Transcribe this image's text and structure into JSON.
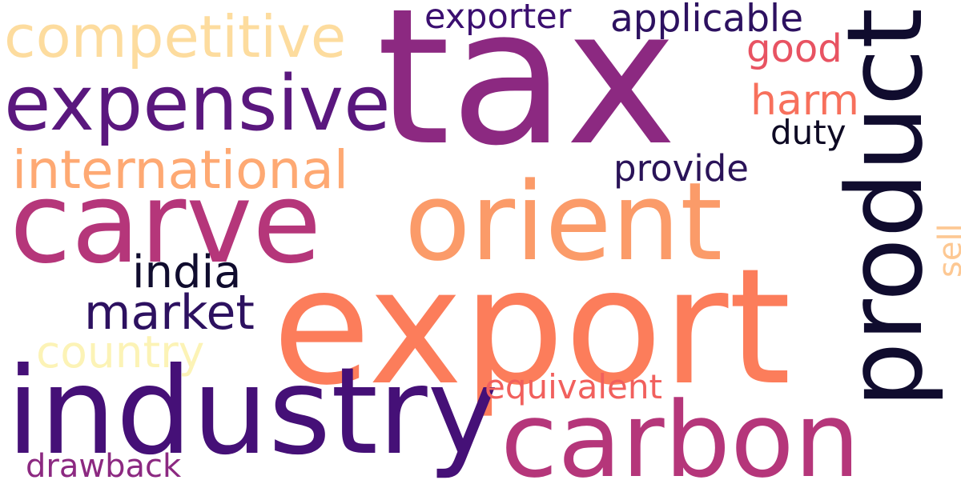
{
  "words": [
    {
      "id": "tax",
      "text": "tax",
      "color": "#8c2981"
    },
    {
      "id": "export",
      "text": "export",
      "color": "#fc7d5b"
    },
    {
      "id": "industry",
      "text": "industry",
      "color": "#451077"
    },
    {
      "id": "carve",
      "text": "carve",
      "color": "#b5367a"
    },
    {
      "id": "orient",
      "text": "orient",
      "color": "#fb9b69"
    },
    {
      "id": "product",
      "text": "product",
      "color": "#100c2e"
    },
    {
      "id": "carbon",
      "text": "carbon",
      "color": "#b5367a"
    },
    {
      "id": "expensive",
      "text": "expensive",
      "color": "#5a177e"
    },
    {
      "id": "competitive",
      "text": "competitive",
      "color": "#fddc9e"
    },
    {
      "id": "international",
      "text": "international",
      "color": "#fea973"
    },
    {
      "id": "market",
      "text": "market",
      "color": "#2d1160"
    },
    {
      "id": "india",
      "text": "india",
      "color": "#100c2e"
    },
    {
      "id": "country",
      "text": "country",
      "color": "#fcf3b6"
    },
    {
      "id": "exporter",
      "text": "exporter",
      "color": "#3b0f70"
    },
    {
      "id": "applicable",
      "text": "applicable",
      "color": "#2d1160"
    },
    {
      "id": "good",
      "text": "good",
      "color": "#e85362"
    },
    {
      "id": "harm",
      "text": "harm",
      "color": "#f7705c"
    },
    {
      "id": "duty",
      "text": "duty",
      "color": "#0e0a24"
    },
    {
      "id": "provide",
      "text": "provide",
      "color": "#2a1358"
    },
    {
      "id": "equivalent",
      "text": "equivalent",
      "color": "#f1605d"
    },
    {
      "id": "drawback",
      "text": "drawback",
      "color": "#8c2981"
    },
    {
      "id": "sell",
      "text": "sell",
      "color": "#fdc893"
    }
  ]
}
